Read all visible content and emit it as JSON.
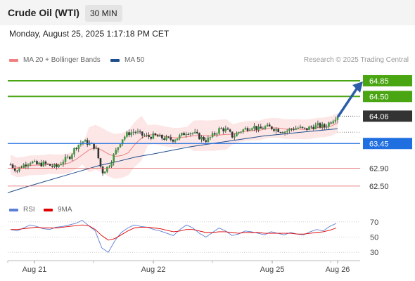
{
  "header": {
    "instrument": "Crude Oil (WTI)",
    "timeframe": "30 MIN"
  },
  "timestamp": "Monday, August 25, 2025 1:17:18 PM CET",
  "legend": {
    "ma20_label": "MA 20 + Bollinger Bands",
    "ma20_color": "#f08080",
    "ma50_label": "MA 50",
    "ma50_color": "#1f4e8c"
  },
  "source": "Research © 2025 Trading Central",
  "rsi_legend": {
    "rsi_label": "RSI",
    "rsi_color": "#5b7fd6",
    "ma_label": "9MA",
    "ma_color": "#e00000"
  },
  "chart_data": [
    {
      "type": "candlestick",
      "title": "",
      "y_range": [
        62.2,
        65.1
      ],
      "current_price": 64.06,
      "levels": [
        {
          "value": 64.85,
          "label": "64.85",
          "color": "#4aa512",
          "kind": "resistance"
        },
        {
          "value": 64.5,
          "label": "64.50",
          "color": "#4aa512",
          "kind": "resistance"
        },
        {
          "value": 63.45,
          "label": "63.45",
          "color": "#1f6fe0",
          "kind": "pivot"
        },
        {
          "value": 62.9,
          "label": "62.90",
          "color": "#e35a5a",
          "kind": "support"
        },
        {
          "value": 62.5,
          "label": "62.50",
          "color": "#e35a5a",
          "kind": "support"
        }
      ],
      "current_label": {
        "value": 64.06,
        "label": "64.06",
        "color": "#333333"
      },
      "target_arrow": {
        "from": 64.06,
        "to": 64.85,
        "color": "#2d5da8"
      },
      "x_ticks": [
        "Aug 21",
        "Aug 22",
        "Aug 25",
        "Aug 26"
      ],
      "close_path": [
        62.98,
        62.85,
        62.97,
        63.05,
        62.98,
        63.0,
        62.96,
        62.92,
        63.06,
        63.15,
        63.38,
        63.5,
        63.45,
        63.36,
        62.8,
        62.95,
        63.25,
        63.55,
        63.68,
        63.72,
        63.64,
        63.6,
        63.62,
        63.58,
        63.55,
        63.54,
        63.62,
        63.72,
        63.68,
        63.58,
        63.52,
        63.64,
        63.78,
        63.75,
        63.6,
        63.72,
        63.78,
        63.84,
        63.76,
        63.82,
        63.8,
        63.75,
        63.72,
        63.78,
        63.8,
        63.76,
        63.82,
        63.85,
        63.82,
        63.95,
        64.08
      ],
      "ma50_path": [
        62.35,
        62.48,
        62.6,
        62.72,
        62.84,
        62.96,
        63.05,
        63.15,
        63.22,
        63.3,
        63.38,
        63.44,
        63.5,
        63.56,
        63.62,
        63.66,
        63.7,
        63.74,
        63.78
      ],
      "rsi_range": [
        20,
        80
      ],
      "rsi_ticks": [
        70,
        50,
        30
      ],
      "rsi_path": [
        60,
        58,
        62,
        66,
        64,
        61,
        60,
        63,
        64,
        66,
        68,
        72,
        65,
        58,
        36,
        30,
        45,
        56,
        62,
        66,
        64,
        63,
        60,
        58,
        55,
        52,
        60,
        66,
        62,
        55,
        50,
        56,
        62,
        58,
        52,
        54,
        58,
        57,
        55,
        53,
        57,
        55,
        53,
        56,
        54,
        53,
        57,
        60,
        58,
        64,
        68
      ],
      "rsi_ma_path": [
        60,
        60,
        61,
        62,
        63,
        62,
        62,
        62,
        63,
        64,
        65,
        66,
        65,
        60,
        52,
        46,
        48,
        53,
        58,
        62,
        63,
        63,
        62,
        61,
        59,
        57,
        58,
        60,
        60,
        58,
        56,
        56,
        57,
        57,
        56,
        55,
        56,
        56,
        56,
        55,
        55,
        55,
        55,
        55,
        54,
        54,
        55,
        56,
        57,
        59,
        62
      ]
    }
  ]
}
